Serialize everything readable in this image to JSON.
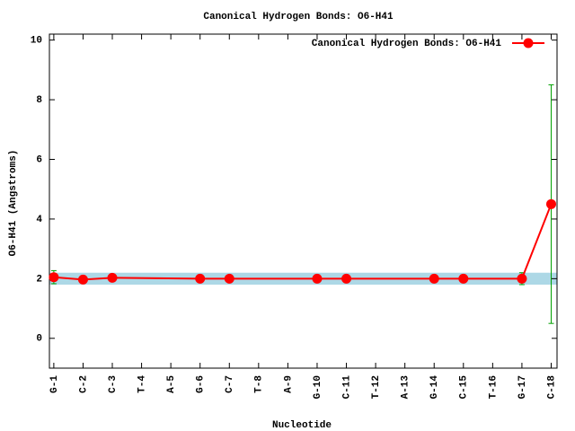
{
  "chart_data": {
    "type": "line",
    "title": "Canonical Hydrogen Bonds: O6-H41",
    "xlabel": "Nucleotide",
    "ylabel": "O6-H41 (Angstroms)",
    "x": [
      1,
      2,
      3,
      6,
      7,
      10,
      11,
      14,
      15,
      17,
      18
    ],
    "series": [
      {
        "name": "Canonical Hydrogen Bonds: O6-H41",
        "color": "#ff0000",
        "values": [
          2.05,
          1.97,
          2.03,
          2.0,
          2.0,
          2.0,
          2.0,
          2.0,
          2.0,
          2.0,
          4.5
        ],
        "errors": [
          0.22,
          0.08,
          0.1,
          0.08,
          0.1,
          0.08,
          0.08,
          0.08,
          0.08,
          0.2,
          4.0
        ],
        "error_color": "#00a000"
      }
    ],
    "reference_band": {
      "range": [
        1.8,
        2.2
      ],
      "color": "#add8e6"
    },
    "xlim": [
      0.85,
      18.2
    ],
    "ylim": [
      -1,
      10.2
    ],
    "xticks": [
      {
        "value": 1,
        "label": "G-1"
      },
      {
        "value": 2,
        "label": "C-2"
      },
      {
        "value": 3,
        "label": "C-3"
      },
      {
        "value": 4,
        "label": "T-4"
      },
      {
        "value": 5,
        "label": "A-5"
      },
      {
        "value": 6,
        "label": "G-6"
      },
      {
        "value": 7,
        "label": "C-7"
      },
      {
        "value": 8,
        "label": "T-8"
      },
      {
        "value": 9,
        "label": "A-9"
      },
      {
        "value": 10,
        "label": "G-10"
      },
      {
        "value": 11,
        "label": "C-11"
      },
      {
        "value": 12,
        "label": "T-12"
      },
      {
        "value": 13,
        "label": "A-13"
      },
      {
        "value": 14,
        "label": "G-14"
      },
      {
        "value": 15,
        "label": "C-15"
      },
      {
        "value": 16,
        "label": "T-16"
      },
      {
        "value": 17,
        "label": "G-17"
      },
      {
        "value": 18,
        "label": "C-18"
      }
    ],
    "yticks": [
      0,
      2,
      4,
      6,
      8,
      10
    ],
    "legend": "top-right"
  }
}
